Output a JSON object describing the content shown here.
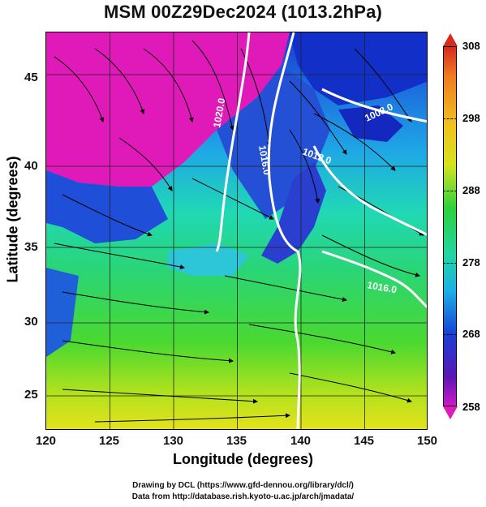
{
  "title": "MSM 00Z29Dec2024 (1013.2hPa)",
  "axes": {
    "xlabel": "Longitude (degrees)",
    "ylabel": "Latitude  (degrees)",
    "x_ticks": [
      "120",
      "125",
      "130",
      "135",
      "140",
      "145",
      "150"
    ],
    "y_ticks": [
      "45",
      "40",
      "35",
      "30",
      "25"
    ],
    "x_range": [
      120,
      150
    ],
    "y_range": [
      22.4,
      47.6
    ]
  },
  "colorbar": {
    "labels": [
      "308",
      "298",
      "288",
      "278",
      "268",
      "258"
    ],
    "range": [
      258,
      308
    ],
    "colors": [
      "#d82a1e",
      "#f2c21d",
      "#2bd23c",
      "#19b1e6",
      "#1840d8",
      "#cf17c8"
    ]
  },
  "isobars": [
    {
      "label": "1020.0"
    },
    {
      "label": "1016.0"
    },
    {
      "label": "1012.0"
    },
    {
      "label": "1008.0"
    },
    {
      "label": "1016.0"
    }
  ],
  "footer": {
    "line1": "Drawing by DCL (https://www.gfd-dennou.org/library/dcl/)",
    "line2": "Data from http://database.rish.kyoto-u.ac.jp/arch/jmadata/"
  }
}
